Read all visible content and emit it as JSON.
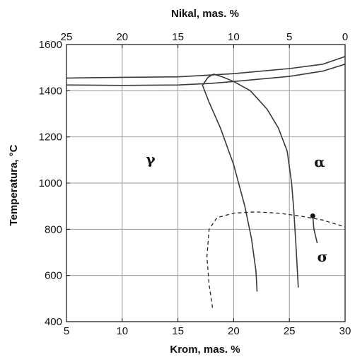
{
  "chart_data": {
    "type": "diagram",
    "top_axis": {
      "label": "Nikal, mas. %",
      "ticks": [
        "25",
        "20",
        "15",
        "10",
        "5",
        "0"
      ]
    },
    "bottom_axis": {
      "label": "Krom, mas. %",
      "ticks": [
        "5",
        "10",
        "15",
        "20",
        "25",
        "30"
      ],
      "range": [
        5,
        30
      ]
    },
    "left_axis": {
      "label": "Temperatura, °C",
      "ticks": [
        "400",
        "600",
        "800",
        "1000",
        "1200",
        "1400",
        "1600"
      ],
      "range": [
        400,
        1600
      ]
    },
    "phases": {
      "gamma": "γ",
      "alpha": "α",
      "sigma": "σ"
    },
    "grid": true,
    "lines": [
      {
        "name": "",
        "style": "solid",
        "points": [
          [
            5,
            1455
          ],
          [
            10,
            1458
          ],
          [
            15,
            1460
          ],
          [
            18,
            1468
          ],
          [
            20,
            1474
          ],
          [
            25,
            1496
          ],
          [
            28,
            1515
          ],
          [
            30,
            1548
          ]
        ]
      },
      {
        "name": "",
        "style": "solid",
        "points": [
          [
            5,
            1425
          ],
          [
            10,
            1423
          ],
          [
            15,
            1425
          ],
          [
            18,
            1432
          ],
          [
            20,
            1440
          ],
          [
            25,
            1462
          ],
          [
            28,
            1485
          ],
          [
            30,
            1515
          ]
        ]
      },
      {
        "name": "",
        "style": "solid",
        "points": [
          [
            18.2,
            1472
          ],
          [
            17.7,
            1458
          ],
          [
            17.2,
            1424
          ],
          [
            17.8,
            1350
          ],
          [
            18.8,
            1240
          ],
          [
            20,
            1080
          ],
          [
            21,
            900
          ],
          [
            21.6,
            760
          ],
          [
            22,
            620
          ],
          [
            22.1,
            530
          ]
        ]
      },
      {
        "name": "",
        "style": "solid",
        "points": [
          [
            18.2,
            1472
          ],
          [
            19,
            1460
          ],
          [
            20,
            1440
          ],
          [
            21.5,
            1400
          ],
          [
            23,
            1320
          ],
          [
            24,
            1240
          ],
          [
            24.8,
            1140
          ],
          [
            25.2,
            1000
          ],
          [
            25.4,
            880
          ],
          [
            25.6,
            720
          ],
          [
            25.8,
            548
          ]
        ]
      },
      {
        "name": "",
        "style": "dashed",
        "points": [
          [
            18.1,
            460
          ],
          [
            17.8,
            560
          ],
          [
            17.6,
            680
          ],
          [
            17.8,
            800
          ],
          [
            18.5,
            850
          ],
          [
            20,
            870
          ],
          [
            22,
            875
          ],
          [
            24,
            870
          ],
          [
            26,
            857
          ],
          [
            28,
            840
          ],
          [
            30,
            810
          ]
        ]
      },
      {
        "name": "",
        "style": "solid",
        "points": [
          [
            27.1,
            858
          ],
          [
            27.2,
            800
          ],
          [
            27.5,
            740
          ]
        ]
      }
    ],
    "marker": {
      "x": 27.1,
      "y": 858
    }
  }
}
